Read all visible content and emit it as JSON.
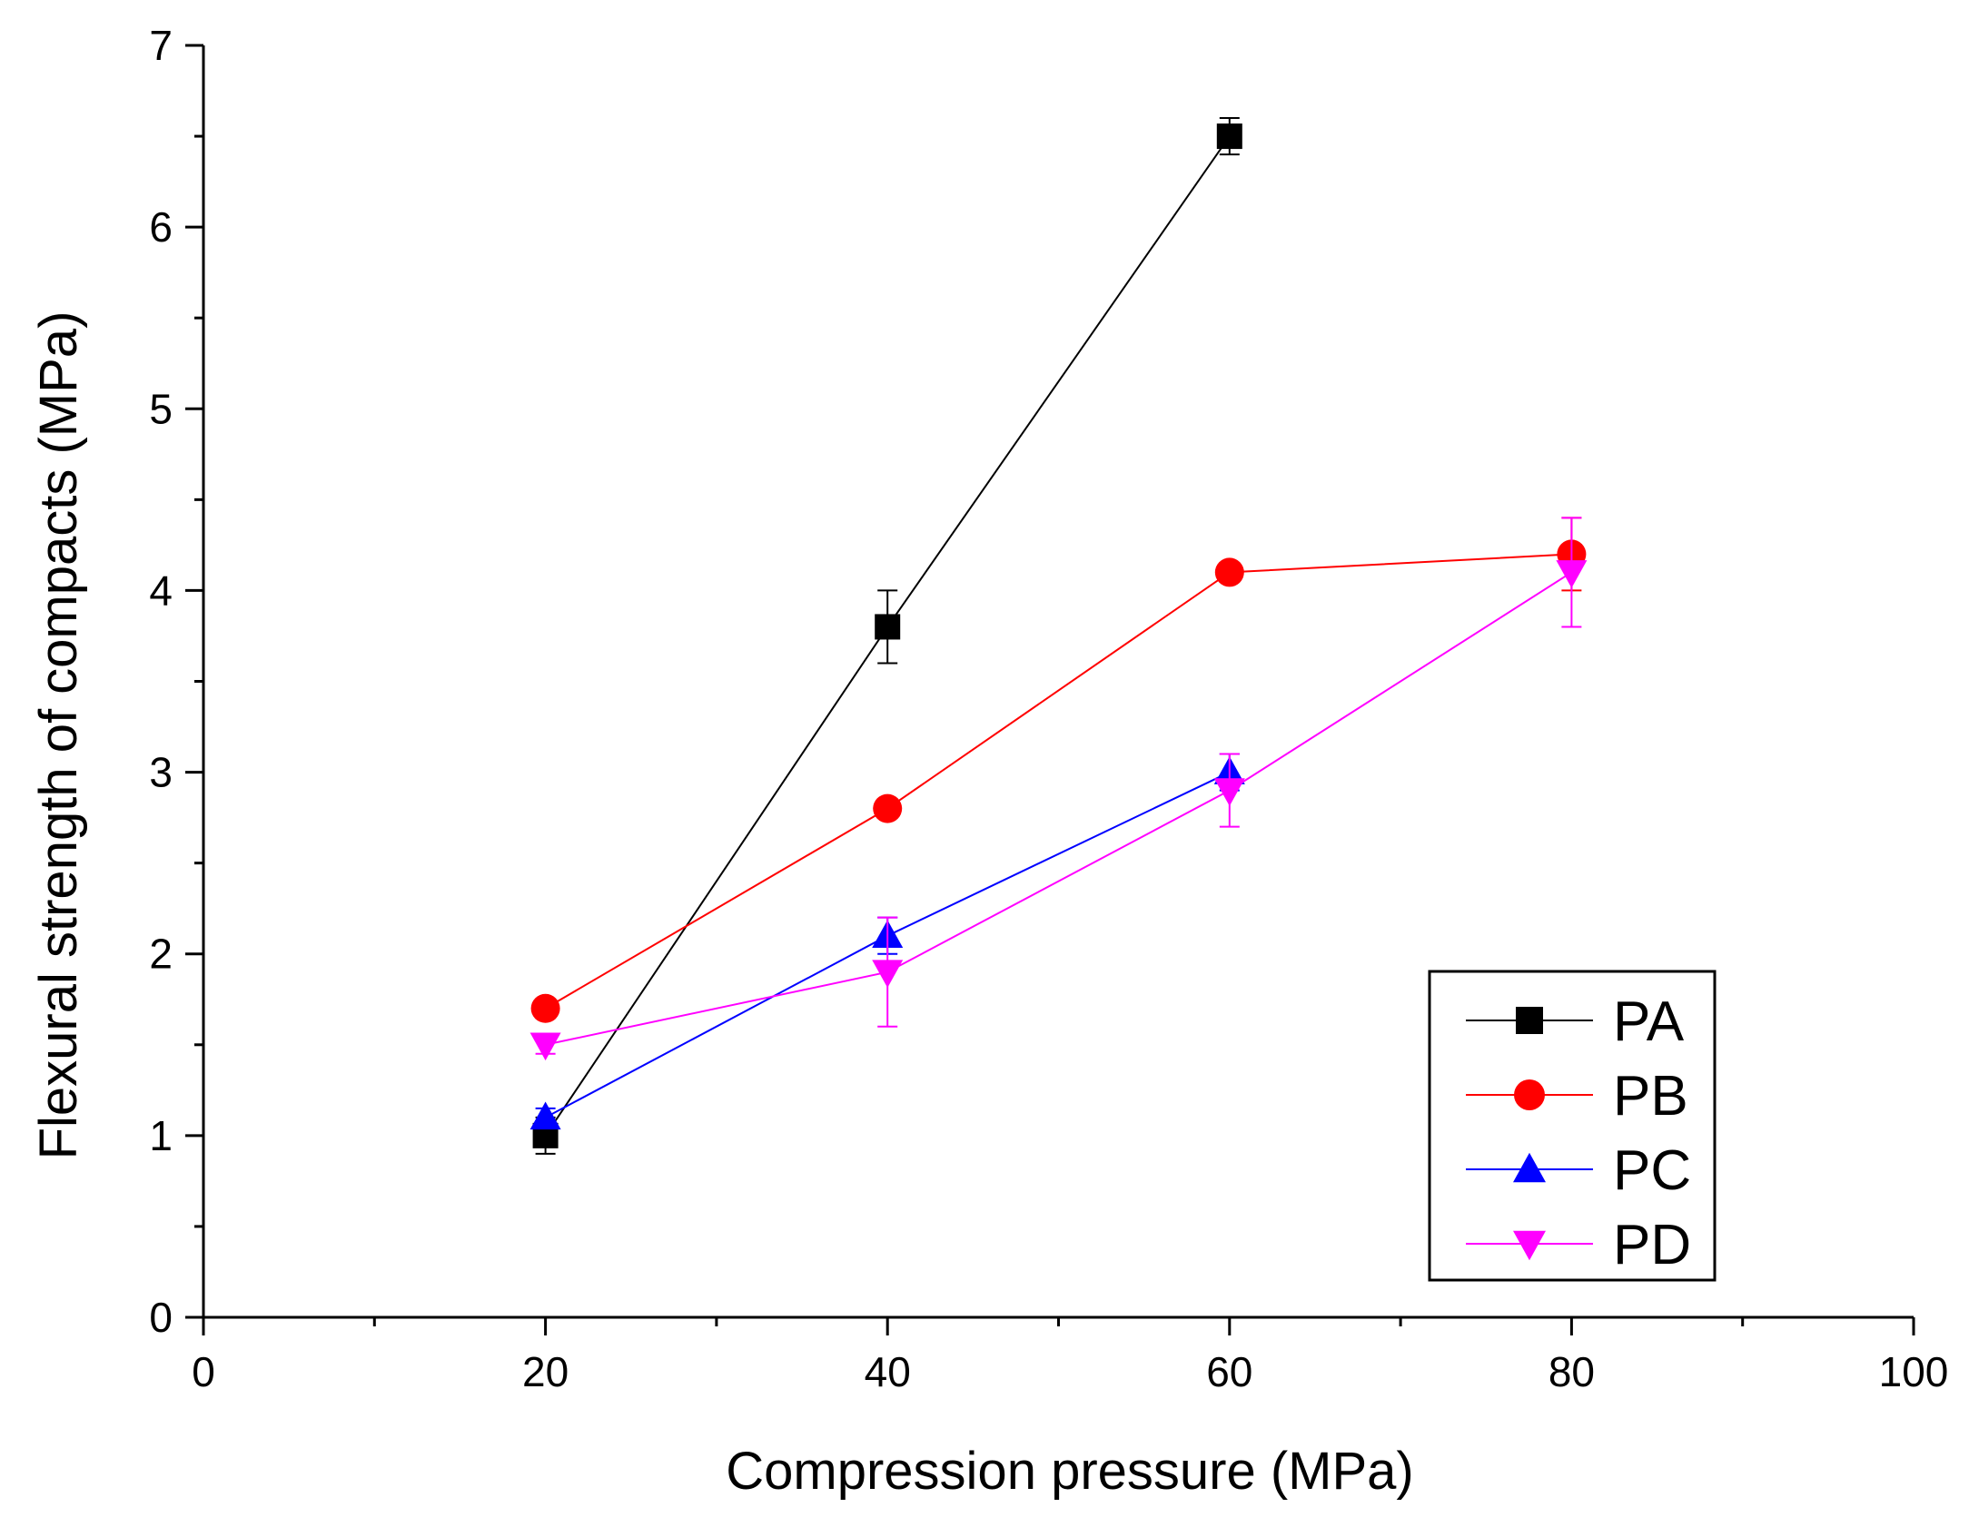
{
  "chart_data": {
    "type": "line",
    "xlabel": "Compression pressure (MPa)",
    "ylabel": "Flexural strength of compacts (MPa)",
    "xlim": [
      0,
      100
    ],
    "ylim": [
      0,
      7
    ],
    "xticks": [
      0,
      20,
      40,
      60,
      80,
      100
    ],
    "yticks": [
      0,
      1,
      2,
      3,
      4,
      5,
      6,
      7
    ],
    "grid": false,
    "legend_position": "bottom-right",
    "series": [
      {
        "name": "PA",
        "color": "#000000",
        "marker": "square",
        "x": [
          20,
          40,
          60
        ],
        "y": [
          1.0,
          3.8,
          6.5
        ],
        "err": [
          0.1,
          0.2,
          0.1
        ]
      },
      {
        "name": "PB",
        "color": "#ff0000",
        "marker": "circle",
        "x": [
          20,
          40,
          60,
          80
        ],
        "y": [
          1.7,
          2.8,
          4.1,
          4.2
        ],
        "err": [
          0.05,
          0.05,
          0.05,
          0.2
        ]
      },
      {
        "name": "PC",
        "color": "#0000ff",
        "marker": "triangle-up",
        "x": [
          20,
          40,
          60
        ],
        "y": [
          1.1,
          2.1,
          3.0
        ],
        "err": [
          0.05,
          0.1,
          0.1
        ]
      },
      {
        "name": "PD",
        "color": "#ff00ff",
        "marker": "triangle-down",
        "x": [
          20,
          40,
          60,
          80
        ],
        "y": [
          1.5,
          1.9,
          2.9,
          4.1
        ],
        "err": [
          0.05,
          0.3,
          0.2,
          0.3
        ]
      }
    ]
  }
}
